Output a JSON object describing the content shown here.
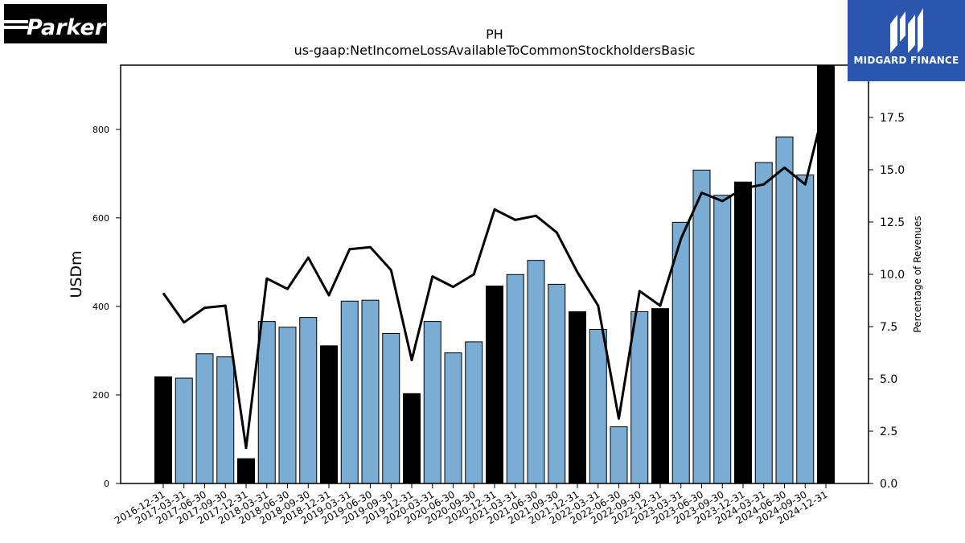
{
  "logos": {
    "company": "Parker",
    "publisher": "MIDGARD FINANCE"
  },
  "chart_data": {
    "type": "bar",
    "title": "PH",
    "subtitle": "us-gaap:NetIncomeLossAvailableToCommonStockholdersBasic",
    "ylabel": "USDm",
    "y2label": "Percentage of Revenues",
    "ylim": [
      0,
      945
    ],
    "y2lim": [
      0,
      20
    ],
    "yticks": [
      0,
      200,
      400,
      600,
      800
    ],
    "y2ticks": [
      "0.0",
      "2.5",
      "5.0",
      "7.5",
      "10.0",
      "12.5",
      "15.0",
      "17.5"
    ],
    "categories": [
      "2016-12-31",
      "2017-03-31",
      "2017-06-30",
      "2017-09-30",
      "2017-12-31",
      "2018-03-31",
      "2018-06-30",
      "2018-09-30",
      "2018-12-31",
      "2019-03-31",
      "2019-06-30",
      "2019-09-30",
      "2019-12-31",
      "2020-03-31",
      "2020-06-30",
      "2020-09-30",
      "2020-12-31",
      "2021-03-31",
      "2021-06-30",
      "2021-09-30",
      "2021-12-31",
      "2022-03-31",
      "2022-06-30",
      "2022-09-30",
      "2022-12-31",
      "2023-03-31",
      "2023-06-30",
      "2023-09-30",
      "2023-12-31",
      "2024-03-31",
      "2024-06-30",
      "2024-09-30",
      "2024-12-31"
    ],
    "series": [
      {
        "kind": "bar",
        "values": [
          241,
          238,
          293,
          286,
          56,
          366,
          353,
          375,
          311,
          412,
          414,
          339,
          203,
          366,
          295,
          320,
          446,
          472,
          504,
          450,
          388,
          348,
          128,
          388,
          395,
          590,
          708,
          651,
          681,
          725,
          783,
          697,
          948
        ],
        "highlight": [
          true,
          false,
          false,
          false,
          true,
          false,
          false,
          false,
          true,
          false,
          false,
          false,
          true,
          false,
          false,
          false,
          true,
          false,
          false,
          false,
          true,
          false,
          false,
          false,
          true,
          false,
          false,
          false,
          true,
          false,
          false,
          false,
          true
        ]
      },
      {
        "kind": "line",
        "axis": "right",
        "values": [
          9.1,
          7.7,
          8.4,
          8.5,
          1.7,
          9.8,
          9.3,
          10.8,
          9.0,
          11.2,
          11.3,
          10.2,
          5.9,
          9.9,
          9.4,
          10.0,
          13.1,
          12.6,
          12.8,
          12.0,
          10.1,
          8.5,
          3.1,
          9.2,
          8.5,
          11.7,
          13.9,
          13.5,
          14.1,
          14.3,
          15.1,
          14.3,
          18.3
        ]
      }
    ],
    "colors": {
      "bar": "#7bacd3",
      "bar_highlight": "#000000",
      "line": "#000000"
    },
    "grid": false
  }
}
